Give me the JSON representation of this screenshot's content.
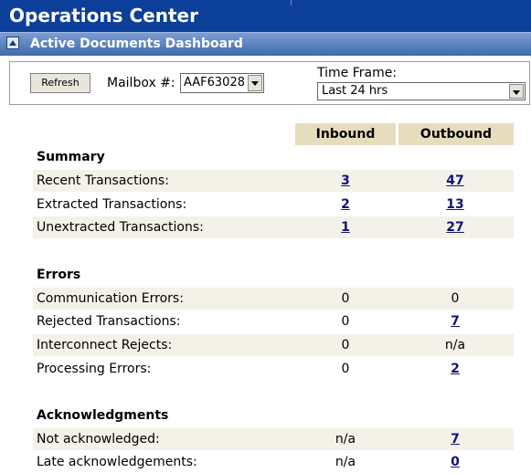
{
  "header": {
    "title": "Operations Center"
  },
  "panel": {
    "title": "Active Documents Dashboard"
  },
  "toolbar": {
    "refresh_label": "Refresh",
    "mailbox_label": "Mailbox #:",
    "mailbox_value": "AAF63028",
    "timeframe_label": "Time Frame:",
    "timeframe_value": "Last 24 hrs"
  },
  "columns": {
    "inbound": "Inbound",
    "outbound": "Outbound"
  },
  "sections": {
    "summary": {
      "title": "Summary",
      "rows": [
        {
          "label": "Recent Transactions:",
          "inbound": "3",
          "outbound": "47"
        },
        {
          "label": "Extracted Transactions:",
          "inbound": "2",
          "outbound": "13"
        },
        {
          "label": "Unextracted Transactions:",
          "inbound": "1",
          "outbound": "27"
        }
      ]
    },
    "errors": {
      "title": "Errors",
      "rows": [
        {
          "label": "Communication Errors:",
          "inbound": "0",
          "outbound": "0"
        },
        {
          "label": "Rejected Transactions:",
          "inbound": "0",
          "outbound": "7"
        },
        {
          "label": "Interconnect Rejects:",
          "inbound": "0",
          "outbound": "n/a"
        },
        {
          "label": "Processing Errors:",
          "inbound": "0",
          "outbound": "2"
        }
      ]
    },
    "acknowledgments": {
      "title": "Acknowledgments",
      "rows": [
        {
          "label": "Not acknowledged:",
          "inbound": "n/a",
          "outbound": "7"
        },
        {
          "label": "Late acknowledgements:",
          "inbound": "n/a",
          "outbound": "0"
        }
      ]
    }
  }
}
